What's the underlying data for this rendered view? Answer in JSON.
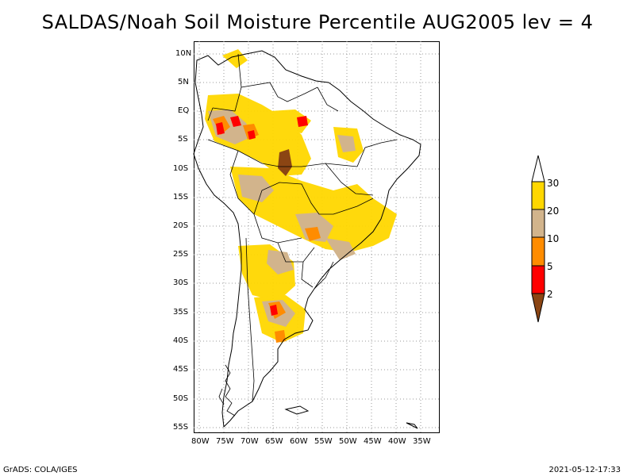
{
  "title": "SALDAS/Noah Soil Moisture Percentile AUG2005 lev = 4",
  "footer": {
    "left": "GrADS: COLA/IGES",
    "right": "2021-05-12-17:33"
  },
  "map": {
    "lon_range": [
      -81,
      -30
    ],
    "lat_range": [
      -56,
      12
    ],
    "lat_ticks": [
      "10N",
      "5N",
      "EQ",
      "5S",
      "10S",
      "15S",
      "20S",
      "25S",
      "30S",
      "35S",
      "40S",
      "45S",
      "50S",
      "55S"
    ],
    "lon_ticks": [
      "80W",
      "75W",
      "70W",
      "65W",
      "60W",
      "55W",
      "50W",
      "45W",
      "40W",
      "35W"
    ]
  },
  "colorbar": {
    "labels": [
      "2",
      "5",
      "10",
      "20",
      "30"
    ],
    "colors": {
      "lt2": "#8b4513",
      "2-5": "#ff0000",
      "5-10": "#ff8c00",
      "10-20": "#d2b48c",
      "20-30": "#ffd700",
      "gt30": "#ffffff"
    }
  }
}
